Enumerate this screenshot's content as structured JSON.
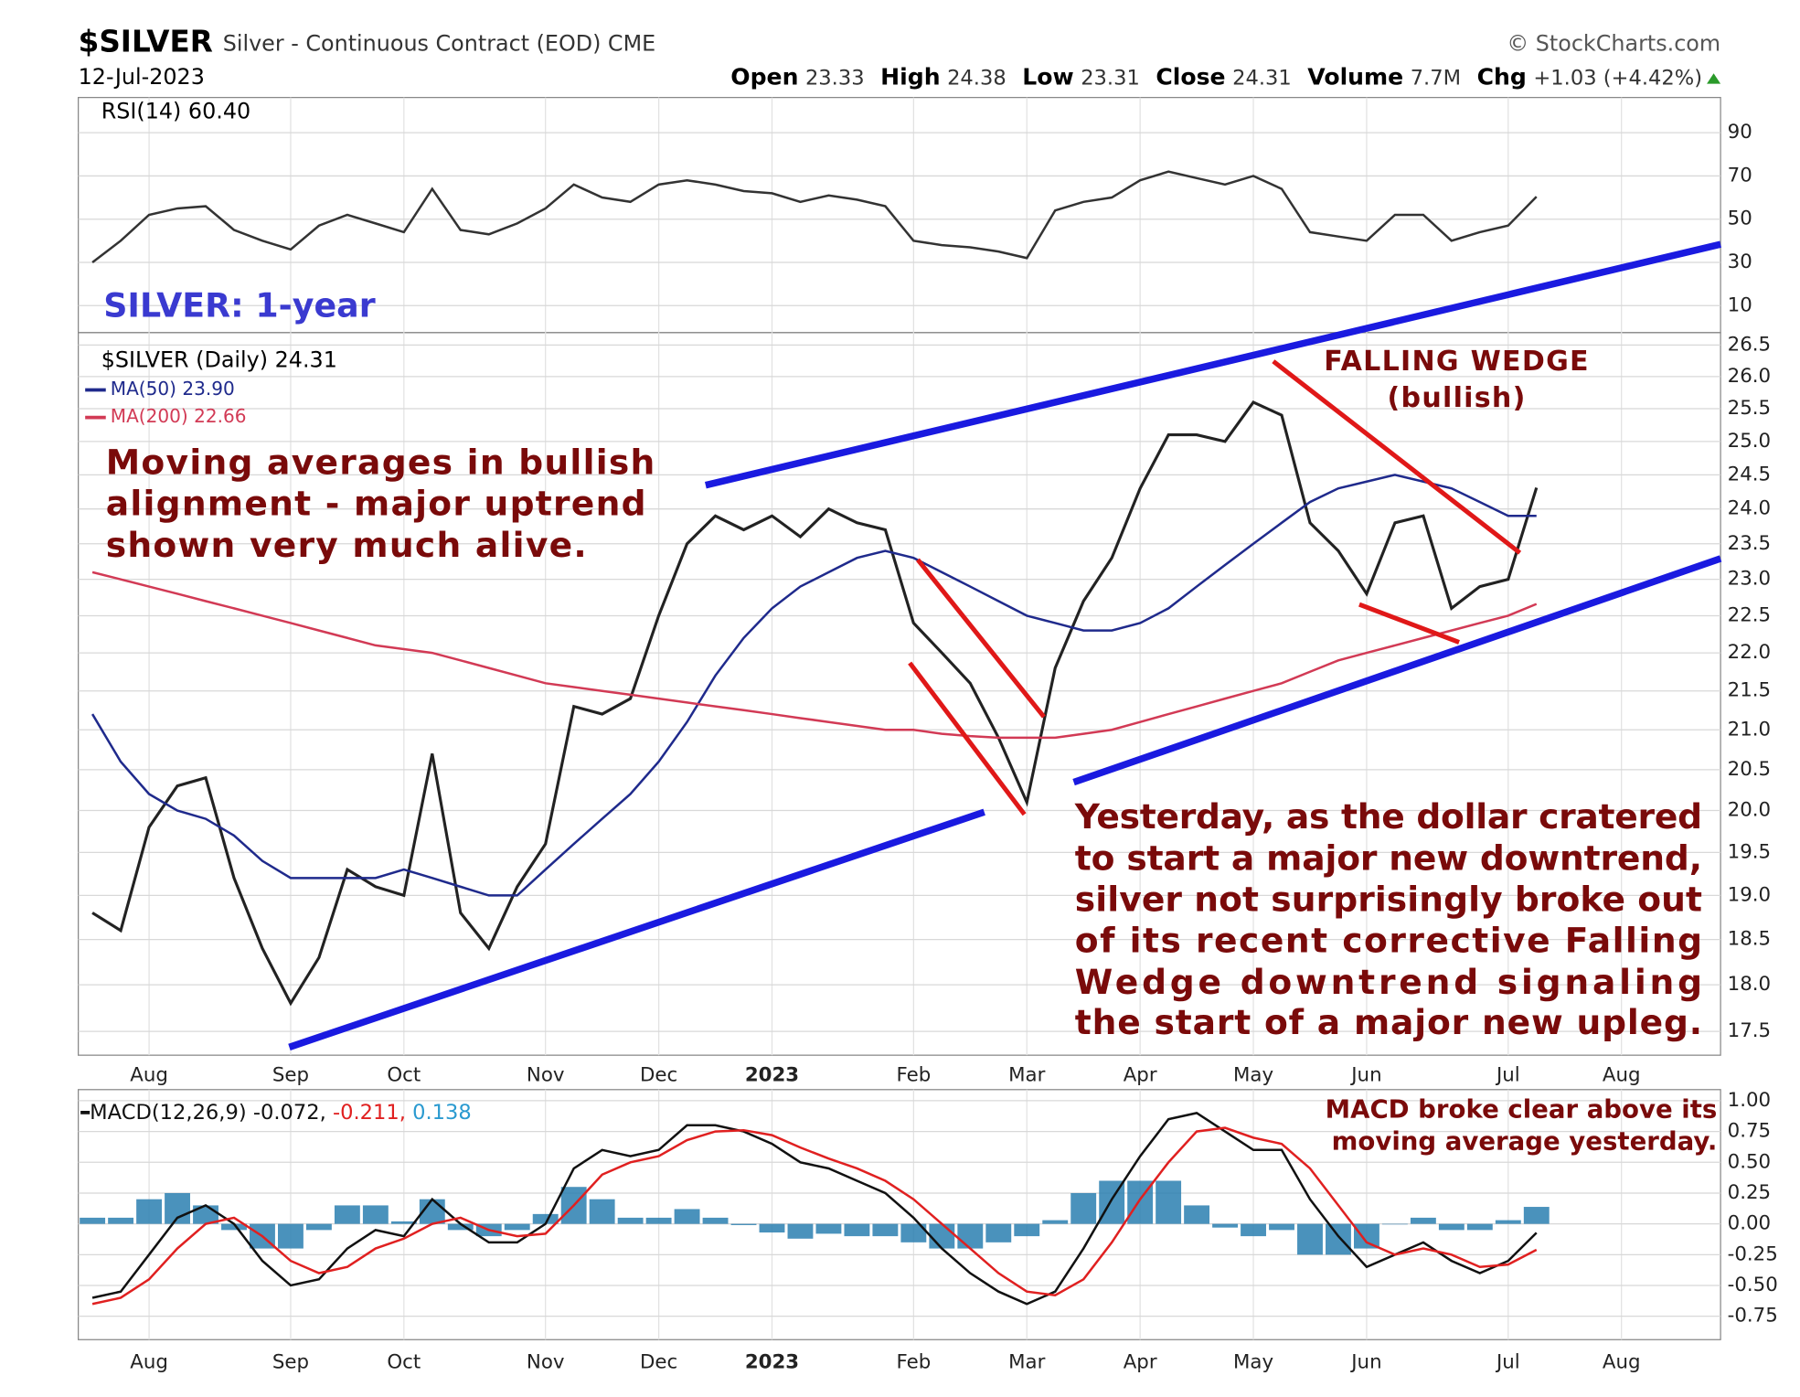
{
  "header": {
    "symbol": "$SILVER",
    "description": "Silver - Continuous Contract (EOD) CME",
    "source": "© StockCharts.com",
    "date": "12-Jul-2023",
    "stats": [
      {
        "label": "Open",
        "value": "23.33"
      },
      {
        "label": "High",
        "value": "24.38"
      },
      {
        "label": "Low",
        "value": "23.31"
      },
      {
        "label": "Close",
        "value": "24.31"
      },
      {
        "label": "Volume",
        "value": "7.7M"
      },
      {
        "label": "Chg",
        "value": "+1.03 (+4.42%)"
      }
    ]
  },
  "chart_data": [
    {
      "type": "line",
      "title": "RSI(14) 60.40",
      "annotation": "SILVER: 1-year",
      "ylim": [
        -2.5,
        106.3
      ],
      "yticks": [
        10,
        30,
        50,
        70,
        90
      ],
      "grid": true,
      "series": [
        {
          "color": "#333333",
          "values": [
            30,
            40,
            52,
            55,
            56,
            45,
            40,
            36,
            47,
            52,
            48,
            44,
            64,
            45,
            43,
            48,
            55,
            66,
            60,
            58,
            66,
            68,
            66,
            63,
            62,
            58,
            61,
            59,
            56,
            40,
            38,
            37,
            35,
            32,
            54,
            58,
            60,
            68,
            72,
            69,
            66,
            70,
            64,
            44,
            42,
            40,
            52,
            52,
            40,
            44,
            47,
            60.4,
            null,
            null,
            null,
            null,
            null,
            null
          ]
        }
      ]
    },
    {
      "type": "line",
      "log": true,
      "grid": true,
      "categories": [
        null,
        null,
        "Aug",
        null,
        null,
        null,
        null,
        "Sep",
        null,
        null,
        null,
        "Oct",
        null,
        null,
        null,
        null,
        "Nov",
        null,
        null,
        null,
        "Dec",
        null,
        null,
        null,
        "2023",
        null,
        null,
        null,
        null,
        "Feb",
        null,
        null,
        null,
        "Mar",
        null,
        null,
        null,
        "Apr",
        null,
        null,
        null,
        "May",
        null,
        null,
        null,
        "Jun",
        null,
        null,
        null,
        null,
        "Jul",
        null,
        null,
        null,
        "Aug",
        null,
        null,
        null
      ],
      "ylim": [
        17.25,
        26.7
      ],
      "yticks": [
        17.5,
        {
          "value": 18,
          "label": "18.0"
        },
        18.5,
        {
          "value": 19,
          "label": "19.0"
        },
        19.5,
        {
          "value": 20,
          "label": "20.0"
        },
        20.5,
        {
          "value": 21,
          "label": "21.0"
        },
        21.5,
        {
          "value": 22,
          "label": "22.0"
        },
        22.5,
        {
          "value": 23,
          "label": "23.0"
        },
        23.5,
        {
          "value": 24,
          "label": "24.0"
        },
        24.5,
        {
          "value": 25,
          "label": "25.0"
        },
        25.5,
        {
          "value": 26,
          "label": "26.0"
        },
        26.5
      ],
      "series": [
        {
          "name": "$SILVER (Daily) 24.31",
          "color": "#222222",
          "values": [
            18.8,
            18.6,
            19.8,
            20.3,
            20.4,
            19.2,
            18.4,
            17.8,
            18.3,
            19.3,
            19.1,
            19.0,
            20.7,
            18.8,
            18.4,
            19.1,
            19.6,
            21.3,
            21.2,
            21.4,
            22.5,
            23.5,
            23.9,
            23.7,
            23.9,
            23.6,
            24.0,
            23.8,
            23.7,
            22.4,
            22.0,
            21.6,
            20.9,
            20.1,
            21.8,
            22.7,
            23.3,
            24.3,
            25.1,
            25.1,
            25.0,
            25.6,
            25.4,
            23.8,
            23.4,
            22.8,
            23.8,
            23.9,
            22.6,
            22.9,
            23.0,
            24.31,
            null,
            null,
            null,
            null,
            null,
            null
          ]
        },
        {
          "name": "MA(50) 23.90",
          "color": "#1f2a8c",
          "values": [
            21.2,
            20.6,
            20.2,
            20.0,
            19.9,
            19.7,
            19.4,
            19.2,
            19.2,
            19.2,
            19.2,
            19.3,
            19.2,
            19.1,
            19.0,
            19.0,
            19.3,
            19.6,
            19.9,
            20.2,
            20.6,
            21.1,
            21.7,
            22.2,
            22.6,
            22.9,
            23.1,
            23.3,
            23.4,
            23.3,
            23.1,
            22.9,
            22.7,
            22.5,
            22.4,
            22.3,
            22.3,
            22.4,
            22.6,
            22.9,
            23.2,
            23.5,
            23.8,
            24.1,
            24.3,
            24.4,
            24.5,
            24.4,
            24.3,
            24.1,
            23.9,
            23.9,
            null,
            null,
            null,
            null,
            null,
            null
          ]
        },
        {
          "name": "MA(200) 22.66",
          "color": "#d23a55",
          "values": [
            23.1,
            23.0,
            22.9,
            22.8,
            22.7,
            22.6,
            22.5,
            22.4,
            22.3,
            22.2,
            22.1,
            22.05,
            22.0,
            21.9,
            21.8,
            21.7,
            21.6,
            21.55,
            21.5,
            21.45,
            21.4,
            21.35,
            21.3,
            21.25,
            21.2,
            21.15,
            21.1,
            21.05,
            21.0,
            21.0,
            20.95,
            20.92,
            20.9,
            20.9,
            20.9,
            20.95,
            21.0,
            21.1,
            21.2,
            21.3,
            21.4,
            21.5,
            21.6,
            21.75,
            21.9,
            22.0,
            22.1,
            22.2,
            22.3,
            22.4,
            22.5,
            22.66,
            null,
            null,
            null,
            null,
            null,
            null
          ]
        }
      ],
      "annotations": [
        {
          "lines": [
            "Moving averages in bullish",
            "alignment - major uptrend",
            "shown very much alive."
          ]
        },
        {
          "lines": [
            "FALLING WEDGE",
            "(bullish)"
          ]
        },
        {
          "lines": [
            "Yesterday, as the dollar cratered",
            "to start a major new downtrend,",
            "silver not surprisingly broke out",
            "of its recent corrective Falling",
            "Wedge downtrend signaling",
            "the start of a major new upleg."
          ]
        }
      ]
    },
    {
      "type": "line",
      "grid": true,
      "legend": [
        "MACD(12,26,9) -0.072,",
        " -0.211,",
        " 0.138"
      ],
      "annotation": [
        "MACD broke clear above its",
        "moving average yesterday."
      ],
      "ylim": [
        -0.94,
        1.09
      ],
      "yticks": [
        {
          "value": 1,
          "label": "1.00"
        },
        0.75,
        {
          "value": 0.5,
          "label": "0.50"
        },
        0.25,
        {
          "value": 0,
          "label": "0.00"
        },
        -0.25,
        {
          "value": -0.5,
          "label": "-0.50"
        },
        -0.75
      ],
      "series": [
        {
          "kind": "histogram",
          "color": "#2a7fb0",
          "values": [
            0.05,
            0.05,
            0.2,
            0.25,
            0.15,
            -0.05,
            -0.2,
            -0.2,
            -0.05,
            0.15,
            0.15,
            0.02,
            0.2,
            -0.05,
            -0.1,
            -0.05,
            0.08,
            0.3,
            0.2,
            0.05,
            0.05,
            0.12,
            0.05,
            -0.01,
            -0.07,
            -0.12,
            -0.08,
            -0.1,
            -0.1,
            -0.15,
            -0.2,
            -0.2,
            -0.15,
            -0.1,
            0.03,
            0.25,
            0.35,
            0.35,
            0.35,
            0.15,
            -0.03,
            -0.1,
            -0.05,
            -0.25,
            -0.25,
            -0.2,
            0,
            0.05,
            -0.05,
            -0.05,
            0.03,
            0.138,
            null,
            null,
            null,
            null,
            null,
            null
          ]
        },
        {
          "color": "#111111",
          "values": [
            -0.6,
            -0.55,
            -0.25,
            0.05,
            0.15,
            0.0,
            -0.3,
            -0.5,
            -0.45,
            -0.2,
            -0.05,
            -0.1,
            0.2,
            0.0,
            -0.15,
            -0.15,
            0.0,
            0.45,
            0.6,
            0.55,
            0.6,
            0.8,
            0.8,
            0.75,
            0.65,
            0.5,
            0.45,
            0.35,
            0.25,
            0.05,
            -0.2,
            -0.4,
            -0.55,
            -0.65,
            -0.55,
            -0.2,
            0.2,
            0.55,
            0.85,
            0.9,
            0.75,
            0.6,
            0.6,
            0.2,
            -0.1,
            -0.35,
            -0.25,
            -0.15,
            -0.3,
            -0.4,
            -0.3,
            -0.072,
            null,
            null,
            null,
            null,
            null,
            null
          ]
        },
        {
          "color": "#e02020",
          "values": [
            -0.65,
            -0.6,
            -0.45,
            -0.2,
            0.0,
            0.05,
            -0.1,
            -0.3,
            -0.4,
            -0.35,
            -0.2,
            -0.12,
            0.0,
            0.05,
            -0.05,
            -0.1,
            -0.08,
            0.15,
            0.4,
            0.5,
            0.55,
            0.68,
            0.75,
            0.76,
            0.72,
            0.62,
            0.53,
            0.45,
            0.35,
            0.2,
            0.0,
            -0.2,
            -0.4,
            -0.55,
            -0.58,
            -0.45,
            -0.15,
            0.2,
            0.5,
            0.75,
            0.78,
            0.7,
            0.65,
            0.45,
            0.15,
            -0.15,
            -0.25,
            -0.2,
            -0.25,
            -0.35,
            -0.33,
            -0.211,
            null,
            null,
            null,
            null,
            null,
            null
          ]
        }
      ]
    }
  ]
}
